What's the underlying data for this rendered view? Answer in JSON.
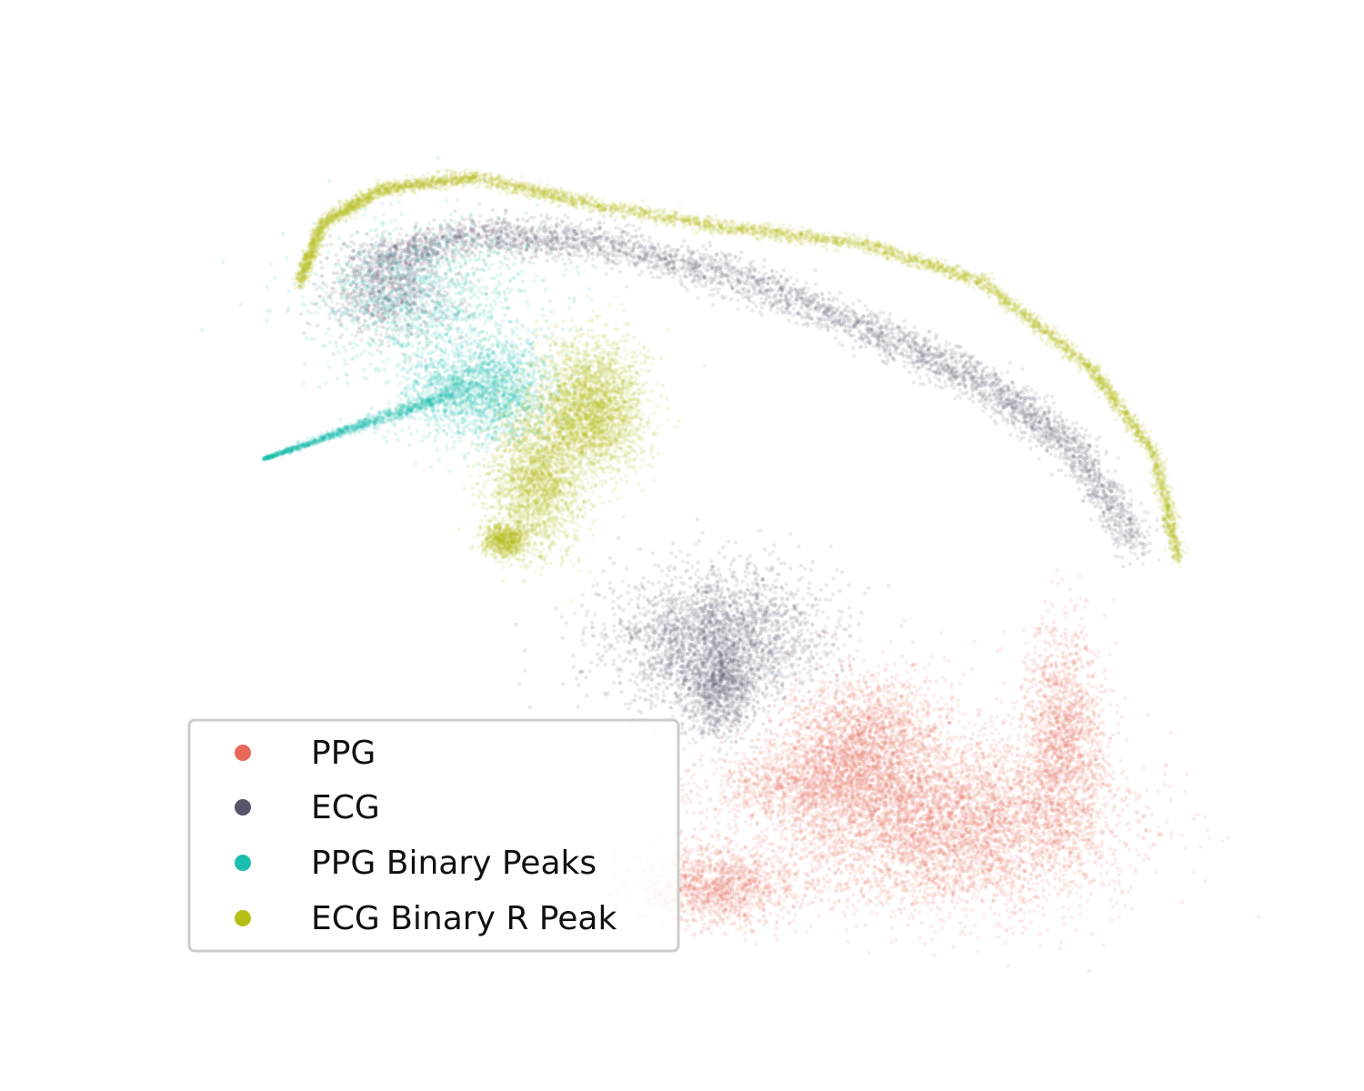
{
  "chart_data": {
    "type": "scatter",
    "title": "",
    "xlabel": "",
    "ylabel": "",
    "axes_visible": false,
    "grid": false,
    "legend_position": "lower-left",
    "marker_alpha": 0.12,
    "series": [
      {
        "name": "PPG",
        "color": "#e8695a",
        "clusters": [
          {
            "cx": 1040,
            "cy": 905,
            "rx": 190,
            "ry": 95,
            "n": 5200
          },
          {
            "cx": 950,
            "cy": 820,
            "rx": 90,
            "ry": 80,
            "n": 2200
          },
          {
            "cx": 1170,
            "cy": 810,
            "rx": 45,
            "ry": 120,
            "n": 1600
          },
          {
            "cx": 790,
            "cy": 975,
            "rx": 90,
            "ry": 45,
            "n": 1400
          },
          {
            "cx": 880,
            "cy": 860,
            "rx": 110,
            "ry": 40,
            "n": 900
          }
        ]
      },
      {
        "name": "ECG",
        "color": "#575569",
        "clusters": [
          {
            "cx": 790,
            "cy": 700,
            "rx": 120,
            "ry": 75,
            "n": 2600
          },
          {
            "cx": 790,
            "cy": 760,
            "rx": 40,
            "ry": 50,
            "n": 900
          },
          {
            "cx": 430,
            "cy": 320,
            "rx": 75,
            "ry": 50,
            "n": 900
          }
        ],
        "arc": {
          "x": [
            400,
            520,
            650,
            800,
            950,
            1080,
            1180,
            1250
          ],
          "y": [
            290,
            258,
            265,
            300,
            360,
            420,
            490,
            600
          ],
          "width": 22,
          "n": 4200
        }
      },
      {
        "name": "PPG Binary Peaks",
        "color": "#1bbfb0",
        "clusters": [
          {
            "cx": 530,
            "cy": 430,
            "rx": 80,
            "ry": 55,
            "n": 1900
          },
          {
            "cx": 470,
            "cy": 330,
            "rx": 120,
            "ry": 90,
            "n": 1200
          }
        ],
        "tail": {
          "x0": 290,
          "y0": 505,
          "x1": 505,
          "y1": 430,
          "n": 1100
        }
      },
      {
        "name": "ECG Binary R Peak",
        "color": "#b5c016",
        "clusters": [
          {
            "cx": 650,
            "cy": 450,
            "rx": 60,
            "ry": 75,
            "n": 2800
          },
          {
            "cx": 590,
            "cy": 530,
            "rx": 50,
            "ry": 75,
            "n": 2000
          },
          {
            "cx": 555,
            "cy": 595,
            "rx": 25,
            "ry": 18,
            "n": 700
          }
        ],
        "arc": {
          "x": [
            330,
            355,
            420,
            520,
            650,
            800,
            950,
            1080,
            1200,
            1270,
            1295
          ],
          "y": [
            310,
            245,
            208,
            195,
            225,
            250,
            268,
            310,
            405,
            500,
            615
          ],
          "width": 8,
          "n": 5200
        }
      }
    ]
  },
  "legend": {
    "entries": [
      "PPG",
      "ECG",
      "PPG Binary Peaks",
      "ECG Binary R Peak"
    ],
    "colors": [
      "#e8695a",
      "#575569",
      "#1bbfb0",
      "#b5c016"
    ]
  }
}
